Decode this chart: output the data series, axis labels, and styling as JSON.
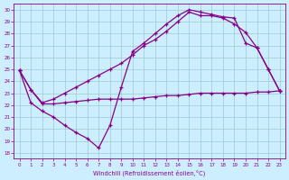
{
  "xlabel": "Windchill (Refroidissement éolien,°C)",
  "bg_color": "#cceeff",
  "line_color": "#880088",
  "grid_color": "#99cccc",
  "xlim": [
    -0.5,
    23.5
  ],
  "ylim": [
    17.5,
    30.5
  ],
  "xticks": [
    0,
    1,
    2,
    3,
    4,
    5,
    6,
    7,
    8,
    9,
    10,
    11,
    12,
    13,
    14,
    15,
    16,
    17,
    18,
    19,
    20,
    21,
    22,
    23
  ],
  "yticks": [
    18,
    19,
    20,
    21,
    22,
    23,
    24,
    25,
    26,
    27,
    28,
    29,
    30
  ],
  "line1_x": [
    0,
    1,
    2,
    3,
    4,
    5,
    6,
    7,
    8,
    9,
    10,
    11,
    12,
    13,
    14,
    15,
    16,
    17,
    18,
    19,
    20,
    21,
    22,
    23
  ],
  "line1_y": [
    24.9,
    23.3,
    22.1,
    22.1,
    22.2,
    22.3,
    22.4,
    22.5,
    22.5,
    22.5,
    22.5,
    22.6,
    22.7,
    22.8,
    22.8,
    22.9,
    23.0,
    23.0,
    23.0,
    23.0,
    23.0,
    23.1,
    23.1,
    23.2
  ],
  "line2_x": [
    0,
    1,
    2,
    3,
    4,
    5,
    6,
    7,
    8,
    9,
    10,
    11,
    12,
    13,
    14,
    15,
    16,
    17,
    18,
    19,
    20,
    21,
    22,
    23
  ],
  "line2_y": [
    24.9,
    23.3,
    22.2,
    22.5,
    23.0,
    23.5,
    24.0,
    24.5,
    25.0,
    25.5,
    26.2,
    27.0,
    27.5,
    28.2,
    29.0,
    29.8,
    29.5,
    29.5,
    29.3,
    28.8,
    28.1,
    26.8,
    25.0,
    23.2
  ],
  "line3_x": [
    0,
    1,
    2,
    3,
    4,
    5,
    6,
    7,
    8,
    9,
    10,
    11,
    12,
    13,
    14,
    15,
    16,
    17,
    18,
    19,
    20,
    21,
    22,
    23
  ],
  "line3_y": [
    24.9,
    22.2,
    21.5,
    21.0,
    20.3,
    19.7,
    19.2,
    18.4,
    20.3,
    23.5,
    26.5,
    27.2,
    28.0,
    28.8,
    29.5,
    30.0,
    29.8,
    29.6,
    29.4,
    29.3,
    27.2,
    26.8,
    25.0,
    23.2
  ]
}
